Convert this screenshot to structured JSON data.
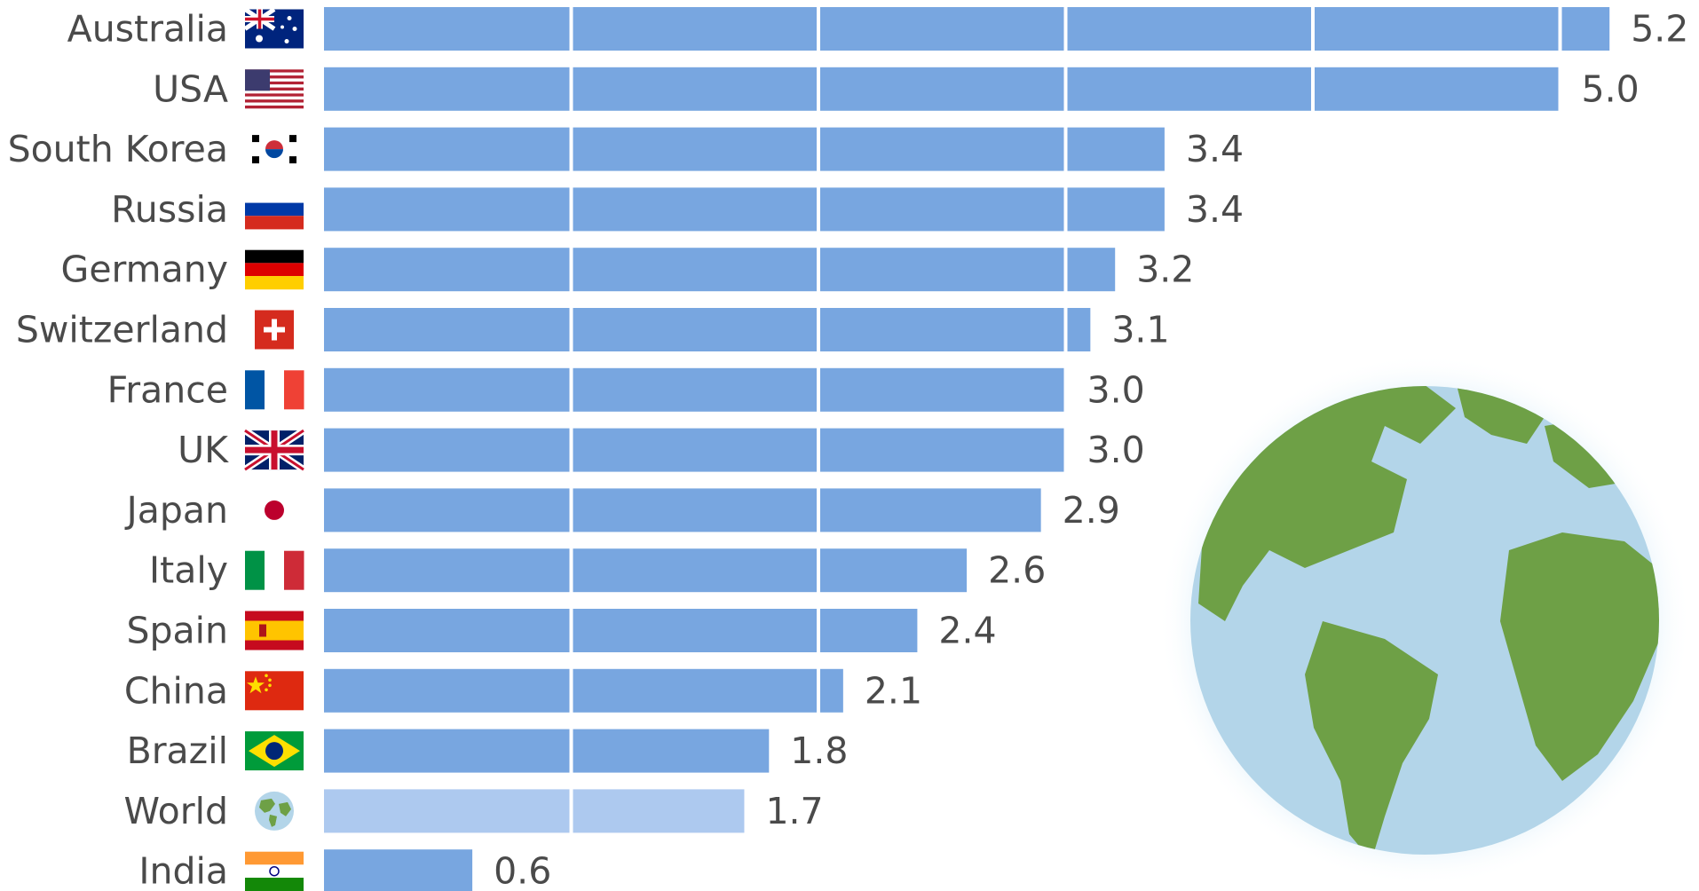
{
  "chart_data": {
    "type": "bar",
    "orientation": "horizontal",
    "categories": [
      "Australia",
      "USA",
      "South Korea",
      "Russia",
      "Germany",
      "Switzerland",
      "France",
      "UK",
      "Japan",
      "Italy",
      "Spain",
      "China",
      "Brazil",
      "World",
      "India"
    ],
    "value_labels": [
      "5.2",
      "5.0",
      "3.4",
      "3.4",
      "3.2",
      "3.1",
      "3.0",
      "3.0",
      "2.9",
      "2.6",
      "2.4",
      "2.1",
      "1.8",
      "1.7",
      "0.6"
    ],
    "values": [
      5.2,
      5.0,
      3.4,
      3.4,
      3.2,
      3.1,
      3.0,
      3.0,
      2.9,
      2.6,
      2.4,
      2.1,
      1.8,
      1.7,
      0.6
    ],
    "highlight": [
      "",
      "",
      "",
      "",
      "",
      "",
      "",
      "",
      "",
      "",
      "",
      "",
      "",
      "highlight",
      ""
    ],
    "flag_icons": [
      "australia-flag-icon",
      "usa-flag-icon",
      "south-korea-flag-icon",
      "russia-flag-icon",
      "germany-flag-icon",
      "switzerland-flag-icon",
      "france-flag-icon",
      "uk-flag-icon",
      "japan-flag-icon",
      "italy-flag-icon",
      "spain-flag-icon",
      "china-flag-icon",
      "brazil-flag-icon",
      "world-globe-icon",
      "india-flag-icon"
    ],
    "xlim": [
      0,
      5.5
    ],
    "grid": true,
    "legend": "none",
    "colors": {
      "bar": "#78a6e0",
      "bar_highlight": "#adc9ef",
      "gridline": "#ffffff",
      "text": "#4a4a4a"
    }
  },
  "decoration": {
    "globe_icon": "world-globe-illustration"
  }
}
